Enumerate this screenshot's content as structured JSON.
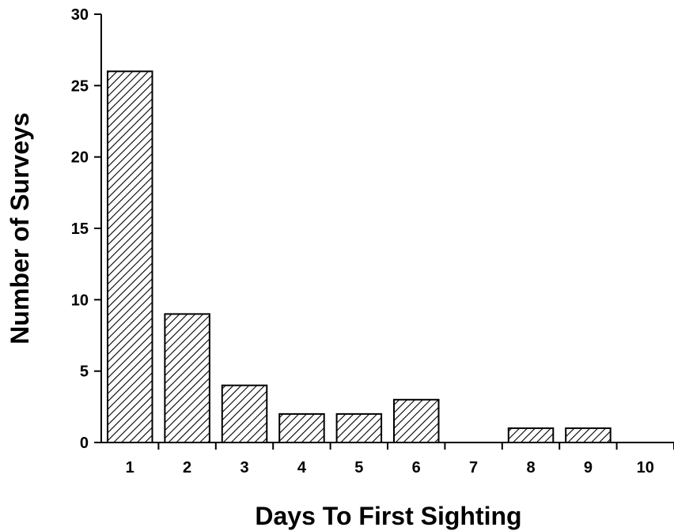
{
  "chart_data": {
    "type": "bar",
    "title": "",
    "xlabel": "Days To First Sighting",
    "ylabel": "Number of Surveys",
    "categories": [
      "1",
      "2",
      "3",
      "4",
      "5",
      "6",
      "7",
      "8",
      "9",
      "10"
    ],
    "values": [
      26,
      9,
      4,
      2,
      2,
      3,
      0,
      1,
      1,
      0
    ],
    "ylim": [
      0,
      30
    ],
    "yticks": [
      "0",
      "5",
      "10",
      "15",
      "20",
      "25",
      "30"
    ],
    "grid": false,
    "legend": "none",
    "bar_fill": "diagonal-hatch",
    "colors": {
      "bar_stroke": "#000000",
      "hatch": "#000000",
      "background": "#ffffff"
    }
  }
}
